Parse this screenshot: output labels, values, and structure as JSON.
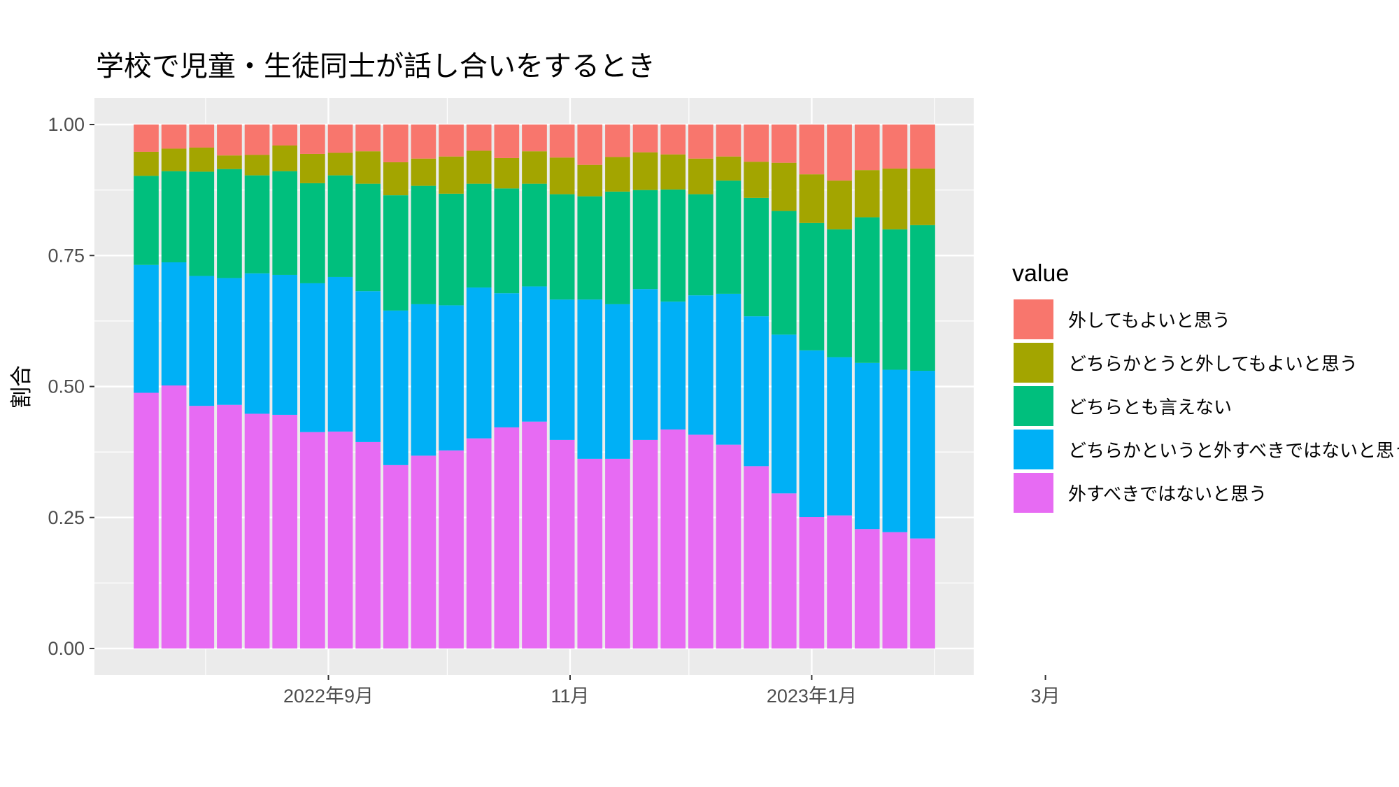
{
  "chart_data": {
    "type": "bar",
    "stacked": true,
    "title": "学校で児童・生徒同士が話し合いをするとき",
    "xlabel": "",
    "ylabel": "割合",
    "ylim": [
      0,
      1
    ],
    "y_ticks": [
      "0.00",
      "0.25",
      "0.50",
      "0.75",
      "1.00"
    ],
    "x_ticks": [
      {
        "label": "2022年9月",
        "date": "2022-09-01"
      },
      {
        "label": "11月",
        "date": "2022-11-01"
      },
      {
        "label": "2023年1月",
        "date": "2023-01-01"
      },
      {
        "label": "3月",
        "date": "2023-03-01"
      }
    ],
    "x_minor_gridlines": [
      "2022-08-01",
      "2022-10-01",
      "2022-12-01",
      "2023-02-01"
    ],
    "x_range": [
      "2022-07-26",
      "2023-03-14"
    ],
    "grid": true,
    "legend": {
      "title": "value",
      "position": "right"
    },
    "categories": [
      "2022-07-17",
      "2022-07-24",
      "2022-07-31",
      "2022-08-07",
      "2022-08-14",
      "2022-08-21",
      "2022-08-28",
      "2022-09-04",
      "2022-09-11",
      "2022-09-18",
      "2022-09-25",
      "2022-10-02",
      "2022-10-09",
      "2022-10-16",
      "2022-10-23",
      "2022-10-30",
      "2022-11-06",
      "2022-11-13",
      "2022-11-20",
      "2022-11-27",
      "2022-12-04",
      "2022-12-11",
      "2022-12-18",
      "2022-12-25",
      "2023-01-01",
      "2023-01-08",
      "2023-01-15",
      "2023-01-22",
      "2023-01-29"
    ],
    "series": [
      {
        "name": "外すべきではないと思う",
        "color": "#e76bf3",
        "values": [
          0.488,
          0.502,
          0.463,
          0.465,
          0.448,
          0.446,
          0.413,
          0.414,
          0.394,
          0.35,
          0.368,
          0.378,
          0.401,
          0.422,
          0.433,
          0.398,
          0.362,
          0.362,
          0.398,
          0.418,
          0.408,
          0.389,
          0.348,
          0.296,
          0.251,
          0.254,
          0.228,
          0.222,
          0.21
        ]
      },
      {
        "name": "どちらかというと外すべきではないと思う",
        "color": "#00b0f6",
        "values": [
          0.244,
          0.235,
          0.248,
          0.242,
          0.268,
          0.267,
          0.284,
          0.295,
          0.288,
          0.295,
          0.289,
          0.277,
          0.288,
          0.256,
          0.258,
          0.268,
          0.304,
          0.295,
          0.288,
          0.244,
          0.266,
          0.288,
          0.286,
          0.303,
          0.318,
          0.302,
          0.317,
          0.31,
          0.32
        ]
      },
      {
        "name": "どちらとも言えない",
        "color": "#00bf7d",
        "values": [
          0.17,
          0.174,
          0.199,
          0.208,
          0.187,
          0.198,
          0.191,
          0.194,
          0.205,
          0.22,
          0.226,
          0.213,
          0.198,
          0.2,
          0.196,
          0.201,
          0.197,
          0.215,
          0.189,
          0.214,
          0.193,
          0.216,
          0.226,
          0.236,
          0.243,
          0.244,
          0.278,
          0.268,
          0.278
        ]
      },
      {
        "name": "どちらかとうと外してもよいと思う",
        "color": "#a3a500",
        "values": [
          0.046,
          0.043,
          0.046,
          0.026,
          0.039,
          0.049,
          0.056,
          0.043,
          0.062,
          0.063,
          0.052,
          0.071,
          0.063,
          0.058,
          0.062,
          0.07,
          0.06,
          0.066,
          0.072,
          0.067,
          0.068,
          0.046,
          0.069,
          0.092,
          0.093,
          0.093,
          0.09,
          0.116,
          0.108
        ]
      },
      {
        "name": "外してもよいと思う",
        "color": "#f8766d",
        "values": [
          0.052,
          0.046,
          0.044,
          0.059,
          0.058,
          0.04,
          0.056,
          0.054,
          0.051,
          0.072,
          0.065,
          0.061,
          0.05,
          0.064,
          0.051,
          0.063,
          0.077,
          0.062,
          0.053,
          0.057,
          0.065,
          0.061,
          0.071,
          0.073,
          0.095,
          0.107,
          0.087,
          0.084,
          0.084
        ]
      }
    ]
  }
}
